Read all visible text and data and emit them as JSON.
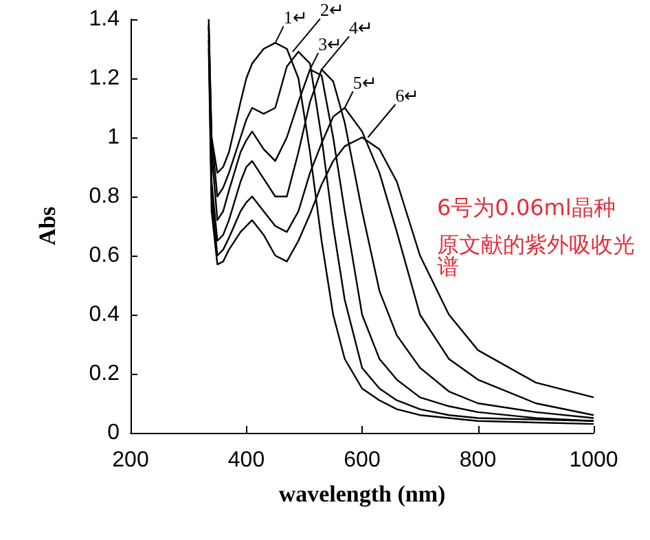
{
  "chart_data": {
    "type": "line",
    "xlabel": "wavelength (nm)",
    "ylabel": "Abs",
    "xlim": [
      200,
      1000
    ],
    "xticks": [
      200,
      400,
      600,
      800,
      1000
    ],
    "ylim": [
      0,
      1.4
    ],
    "yticks": [
      0,
      0.2,
      0.4,
      0.6,
      0.8,
      1,
      1.2,
      1.4
    ],
    "grid": false,
    "marker": "none",
    "line_style": "solid",
    "x": [
      335,
      340,
      350,
      360,
      370,
      390,
      400,
      410,
      430,
      450,
      470,
      490,
      510,
      530,
      550,
      570,
      600,
      630,
      660,
      700,
      750,
      800,
      900,
      1000
    ],
    "series": [
      {
        "color": "#000000",
        "values": [
          1.4,
          1.0,
          0.88,
          0.9,
          0.95,
          1.12,
          1.2,
          1.25,
          1.3,
          1.32,
          1.3,
          1.2,
          0.95,
          0.65,
          0.4,
          0.25,
          0.15,
          0.11,
          0.08,
          0.06,
          0.05,
          0.04,
          0.035,
          0.03
        ]
      },
      {
        "color": "#000000",
        "values": [
          1.38,
          1.0,
          0.8,
          0.83,
          0.88,
          1.0,
          1.06,
          1.1,
          1.08,
          1.1,
          1.24,
          1.29,
          1.25,
          1.0,
          0.7,
          0.45,
          0.22,
          0.15,
          0.11,
          0.08,
          0.06,
          0.05,
          0.045,
          0.04
        ]
      },
      {
        "color": "#000000",
        "values": [
          1.38,
          0.95,
          0.72,
          0.75,
          0.82,
          0.95,
          0.99,
          1.02,
          0.96,
          0.92,
          1.0,
          1.12,
          1.23,
          1.21,
          1.0,
          0.75,
          0.4,
          0.25,
          0.18,
          0.12,
          0.09,
          0.07,
          0.05,
          0.04
        ]
      },
      {
        "color": "#000000",
        "values": [
          1.35,
          0.85,
          0.65,
          0.67,
          0.72,
          0.85,
          0.9,
          0.92,
          0.86,
          0.8,
          0.8,
          0.95,
          1.12,
          1.23,
          1.19,
          1.05,
          0.75,
          0.48,
          0.33,
          0.22,
          0.14,
          0.1,
          0.07,
          0.05
        ]
      },
      {
        "color": "#000000",
        "values": [
          1.33,
          0.8,
          0.6,
          0.62,
          0.66,
          0.75,
          0.78,
          0.8,
          0.75,
          0.7,
          0.68,
          0.75,
          0.88,
          0.98,
          1.07,
          1.1,
          1.02,
          0.88,
          0.68,
          0.4,
          0.25,
          0.18,
          0.1,
          0.06
        ]
      },
      {
        "color": "#000000",
        "values": [
          1.3,
          0.75,
          0.57,
          0.58,
          0.62,
          0.68,
          0.7,
          0.72,
          0.67,
          0.6,
          0.58,
          0.65,
          0.74,
          0.84,
          0.92,
          0.97,
          1.0,
          0.96,
          0.85,
          0.6,
          0.4,
          0.28,
          0.17,
          0.12
        ]
      }
    ],
    "annotations": [
      {
        "text": "1↵",
        "x": 450,
        "y": 1.32
      },
      {
        "text": "2↵",
        "x": 480,
        "y": 1.29
      },
      {
        "text": "3↵",
        "x": 510,
        "y": 1.23
      },
      {
        "text": "4↵",
        "x": 530,
        "y": 1.23
      },
      {
        "text": "5↵",
        "x": 570,
        "y": 1.1
      },
      {
        "text": "6↵",
        "x": 610,
        "y": 1.0
      },
      "6号为0.06ml晶种",
      "原文献的紫外吸收光谱"
    ]
  }
}
